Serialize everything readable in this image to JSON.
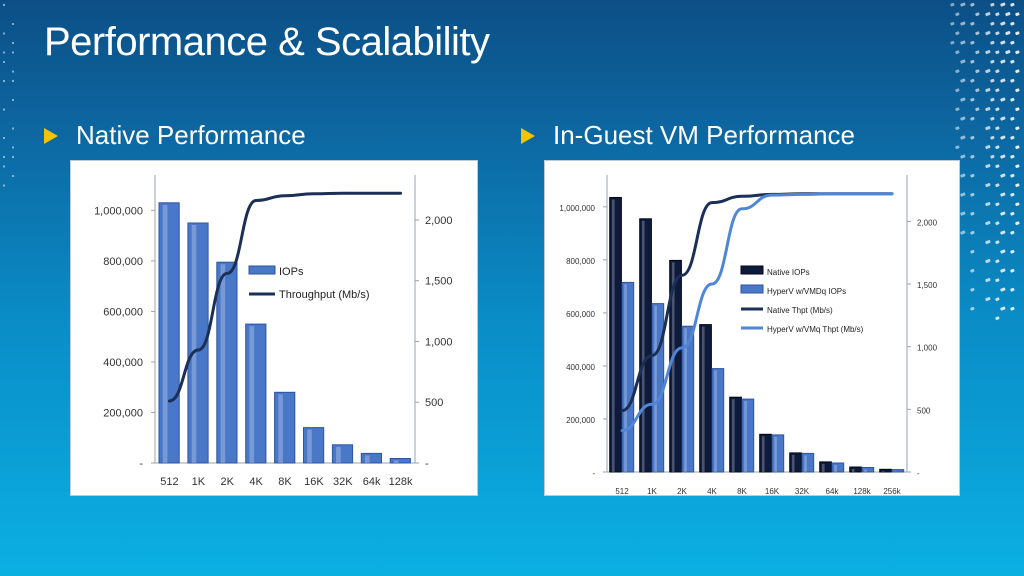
{
  "slide": {
    "title": "Performance & Scalability",
    "bullets": [
      "Native Performance",
      "In-Guest VM Performance"
    ]
  },
  "colors": {
    "bullet_triangle": "#f5c400",
    "bar_primary": "#4a78c8",
    "bar_dark": "#0e1a3c",
    "line_dark": "#1b2f57",
    "line_light": "#4f86d6"
  },
  "chart_data": [
    {
      "type": "bar",
      "categories": [
        "512",
        "1K",
        "2K",
        "4K",
        "8K",
        "16K",
        "32K",
        "64k",
        "128k"
      ],
      "y_left_ticks": [
        "-",
        "200,000",
        "400,000",
        "600,000",
        "800,000",
        "1,000,000"
      ],
      "y_right_ticks": [
        "-",
        "500",
        "1,000",
        "1,500",
        "2,000"
      ],
      "ylim_left": [
        0,
        1140000
      ],
      "ylim_right": [
        0,
        2370
      ],
      "series": [
        {
          "name": "IOPs",
          "kind": "bar",
          "axis": "left",
          "values": [
            1030000,
            950000,
            795000,
            550000,
            280000,
            140000,
            72000,
            38000,
            18000
          ]
        },
        {
          "name": "Throughput (Mb/s)",
          "kind": "line",
          "axis": "right",
          "values": [
            510,
            930,
            1560,
            2160,
            2200,
            2215,
            2220,
            2220,
            2220
          ]
        }
      ],
      "legend": "center"
    },
    {
      "type": "bar",
      "categories": [
        "512",
        "1K",
        "2K",
        "4K",
        "8K",
        "16K",
        "32K",
        "64k",
        "128k",
        "256k"
      ],
      "y_left_ticks": [
        "-",
        "200,000",
        "400,000",
        "600,000",
        "800,000",
        "1,000,000"
      ],
      "y_right_ticks": [
        "-",
        "500",
        "1,000",
        "1,500",
        "2,000"
      ],
      "ylim_left": [
        0,
        1120000
      ],
      "ylim_right": [
        0,
        2370
      ],
      "series": [
        {
          "name": "Native IOPs",
          "kind": "bar",
          "axis": "left",
          "values": [
            1035000,
            955000,
            798000,
            556000,
            282000,
            142000,
            72000,
            38000,
            19000,
            10000
          ]
        },
        {
          "name": "HyperV w/VMDq IOPs",
          "kind": "bar",
          "axis": "left",
          "values": [
            715000,
            635000,
            550000,
            390000,
            275000,
            140000,
            70000,
            34000,
            17000,
            9000
          ]
        },
        {
          "name": "Native Thpt (Mb/s)",
          "kind": "line",
          "axis": "right",
          "values": [
            490,
            930,
            1570,
            2150,
            2200,
            2215,
            2220,
            2220,
            2220,
            2220
          ]
        },
        {
          "name": "HyperV w/VMq Thpt (Mb/s)",
          "kind": "line",
          "axis": "right",
          "values": [
            330,
            540,
            990,
            1500,
            2100,
            2210,
            2215,
            2220,
            2220,
            2220
          ]
        }
      ],
      "legend": "center-right"
    }
  ]
}
